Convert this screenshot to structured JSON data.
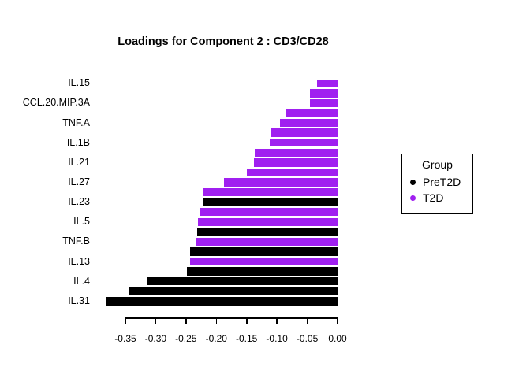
{
  "title": "Loadings for Component 2 : CD3/CD28",
  "colors": {
    "background": "#FFFFFF",
    "axis": "#000000",
    "text": "#000000",
    "groups": {
      "PreT2D": "#000000",
      "T2D": "#A020F0"
    }
  },
  "legend": {
    "title": "Group",
    "items": [
      {
        "label": "PreT2D",
        "group": "PreT2D"
      },
      {
        "label": "T2D",
        "group": "T2D"
      }
    ]
  },
  "chart_data": {
    "type": "bar",
    "orientation": "horizontal",
    "title": "Loadings for Component 2 : CD3/CD28",
    "xlabel": "",
    "ylabel": "",
    "xlim": [
      -0.39,
      0.0
    ],
    "grid": false,
    "legend_position": "right",
    "x_ticks": [
      {
        "value": -0.35,
        "label": "-0.35"
      },
      {
        "value": -0.3,
        "label": "-0.30"
      },
      {
        "value": -0.25,
        "label": "-0.25"
      },
      {
        "value": -0.2,
        "label": "-0.20"
      },
      {
        "value": -0.15,
        "label": "-0.15"
      },
      {
        "value": -0.1,
        "label": "-0.10"
      },
      {
        "value": -0.05,
        "label": "-0.05"
      },
      {
        "value": 0.0,
        "label": "0.00"
      }
    ],
    "bars": [
      {
        "label": "IL.15",
        "value": -0.034,
        "group": "T2D"
      },
      {
        "label": "",
        "value": -0.045,
        "group": "T2D"
      },
      {
        "label": "CCL.20.MIP.3A",
        "value": -0.045,
        "group": "T2D"
      },
      {
        "label": "",
        "value": -0.085,
        "group": "T2D"
      },
      {
        "label": "TNF.A",
        "value": -0.095,
        "group": "T2D"
      },
      {
        "label": "",
        "value": -0.109,
        "group": "T2D"
      },
      {
        "label": "IL.1B",
        "value": -0.112,
        "group": "T2D"
      },
      {
        "label": "",
        "value": -0.137,
        "group": "T2D"
      },
      {
        "label": "IL.21",
        "value": -0.138,
        "group": "T2D"
      },
      {
        "label": "",
        "value": -0.15,
        "group": "T2D"
      },
      {
        "label": "IL.27",
        "value": -0.188,
        "group": "T2D"
      },
      {
        "label": "",
        "value": -0.222,
        "group": "T2D"
      },
      {
        "label": "IL.23",
        "value": -0.222,
        "group": "PreT2D"
      },
      {
        "label": "",
        "value": -0.228,
        "group": "T2D"
      },
      {
        "label": "IL.5",
        "value": -0.23,
        "group": "T2D"
      },
      {
        "label": "",
        "value": -0.232,
        "group": "PreT2D"
      },
      {
        "label": "TNF.B",
        "value": -0.233,
        "group": "T2D"
      },
      {
        "label": "",
        "value": -0.243,
        "group": "PreT2D"
      },
      {
        "label": "IL.13",
        "value": -0.244,
        "group": "T2D"
      },
      {
        "label": "",
        "value": -0.249,
        "group": "PreT2D"
      },
      {
        "label": "IL.4",
        "value": -0.314,
        "group": "PreT2D"
      },
      {
        "label": "",
        "value": -0.345,
        "group": "PreT2D"
      },
      {
        "label": "IL.31",
        "value": -0.382,
        "group": "PreT2D"
      }
    ]
  }
}
